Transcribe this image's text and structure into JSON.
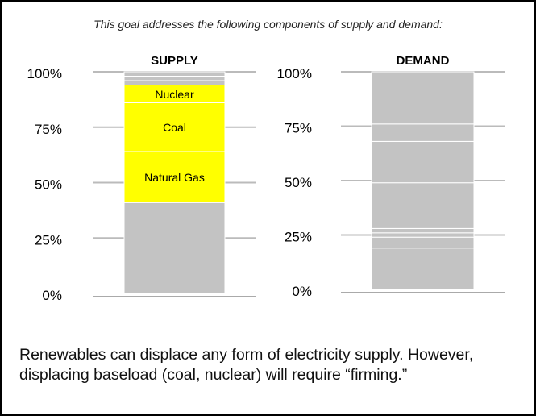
{
  "caption": "This goal addresses the following components of supply and demand:",
  "chart_data": [
    {
      "type": "stacked_bar",
      "title": "SUPPLY",
      "ylim": [
        0,
        100
      ],
      "yticks": [
        {
          "value": 0,
          "label": "0%"
        },
        {
          "value": 25,
          "label": "25%"
        },
        {
          "value": 50,
          "label": "50%"
        },
        {
          "value": 75,
          "label": "75%"
        },
        {
          "value": 100,
          "label": "100%"
        }
      ],
      "series": [
        {
          "color": "#c3c3c3",
          "values": [
            41
          ]
        },
        {
          "name": "Natural Gas",
          "color": "#ffff00",
          "values": [
            23
          ]
        },
        {
          "name": "Coal",
          "color": "#ffff00",
          "values": [
            22
          ]
        },
        {
          "name": "Nuclear",
          "color": "#ffff00",
          "values": [
            8
          ]
        },
        {
          "color": "#c3c3c3",
          "values": [
            2
          ]
        },
        {
          "color": "#c3c3c3",
          "values": [
            2
          ]
        },
        {
          "color": "#c3c3c3",
          "values": [
            2
          ]
        }
      ]
    },
    {
      "type": "stacked_bar",
      "title": "DEMAND",
      "ylim": [
        0,
        100
      ],
      "yticks": [
        {
          "value": 0,
          "label": "0%"
        },
        {
          "value": 25,
          "label": "25%"
        },
        {
          "value": 50,
          "label": "50%"
        },
        {
          "value": 75,
          "label": "75%"
        },
        {
          "value": 100,
          "label": "100%"
        }
      ],
      "series": [
        {
          "color": "#c3c3c3",
          "values": [
            19
          ]
        },
        {
          "color": "#c3c3c3",
          "values": [
            5
          ]
        },
        {
          "color": "#c3c3c3",
          "values": [
            2
          ]
        },
        {
          "color": "#c3c3c3",
          "values": [
            2
          ]
        },
        {
          "color": "#c3c3c3",
          "values": [
            21
          ]
        },
        {
          "color": "#c3c3c3",
          "values": [
            19
          ]
        },
        {
          "color": "#c3c3c3",
          "values": [
            8
          ]
        },
        {
          "color": "#c3c3c3",
          "values": [
            24
          ]
        }
      ]
    }
  ],
  "footer": "Renewables can displace any form of electricity supply. However, displacing baseload (coal, nuclear) will require “firming.”"
}
